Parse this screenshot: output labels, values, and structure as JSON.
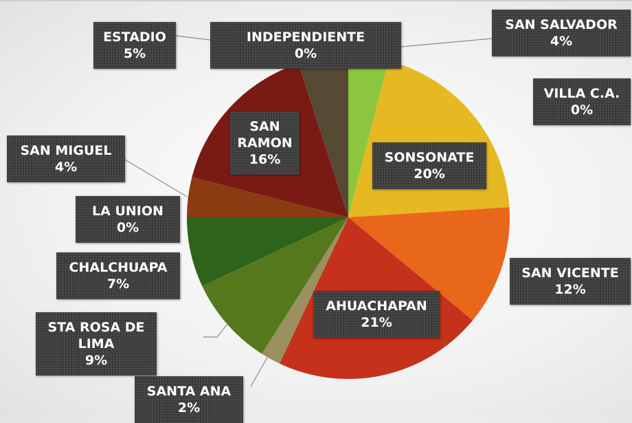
{
  "chart_data": {
    "type": "pie",
    "categories": [
      "SAN SALVADOR",
      "VILLA C.A.",
      "SONSONATE",
      "SAN VICENTE",
      "AHUACHAPAN",
      "SANTA ANA",
      "STA ROSA DE LIMA",
      "CHALCHUAPA",
      "LA UNION",
      "SAN MIGUEL",
      "SAN RAMON",
      "ESTADIO",
      "INDEPENDIENTE"
    ],
    "values": [
      4,
      0,
      20,
      12,
      21,
      2,
      9,
      7,
      0,
      4,
      16,
      5,
      0
    ],
    "value_labels": [
      "4%",
      "0%",
      "20%",
      "12%",
      "21%",
      "2%",
      "9%",
      "7%",
      "0%",
      "4%",
      "16%",
      "5%",
      "0%"
    ],
    "colors": [
      "#8cc63e",
      "#d9b12a",
      "#e6b922",
      "#e8671b",
      "#c5311b",
      "#9b9160",
      "#56781d",
      "#2e6419",
      "#6b5a1c",
      "#8a3b12",
      "#7a1b13",
      "#574a34",
      "#3b3a2c"
    ]
  }
}
